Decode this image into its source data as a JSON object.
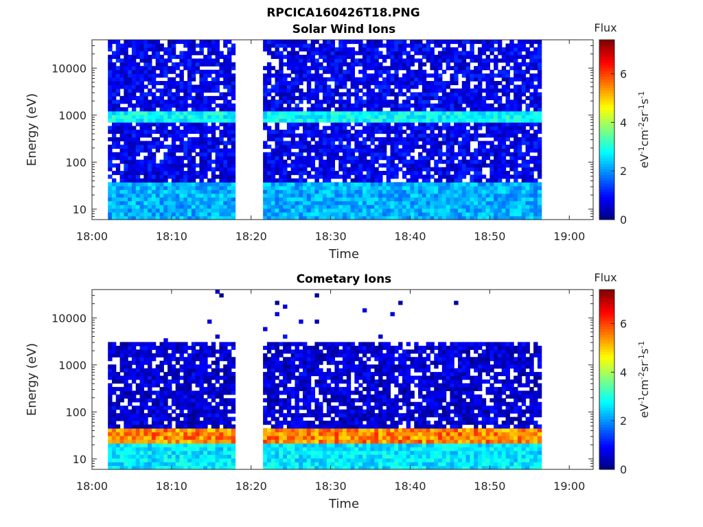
{
  "figure_title": "RPCICA160426T18.PNG",
  "colors": {
    "background": "#ffffff",
    "axes": "#262626",
    "colormap": [
      "#00007f",
      "#0000ff",
      "#007fff",
      "#00ffff",
      "#7fff7f",
      "#ffff00",
      "#ff7f00",
      "#ff0000",
      "#7f0000"
    ]
  },
  "chart_data": [
    {
      "type": "heatmap",
      "title": "Solar Wind Ions",
      "xlabel": "Time",
      "ylabel": "Energy (eV)",
      "x_ticks": [
        "18:00",
        "18:10",
        "18:20",
        "18:30",
        "18:40",
        "18:50",
        "19:00"
      ],
      "x_range_minutes": [
        0,
        63
      ],
      "y_scale": "log",
      "y_ticks": [
        "10",
        "100",
        "1000",
        "10000"
      ],
      "y_range": [
        6,
        40000
      ],
      "colorbar": {
        "title": "Flux",
        "label": "eV-1cm-2sr-1s-1",
        "range": [
          0,
          7.4
        ],
        "ticks": [
          "0",
          "2",
          "4",
          "6"
        ]
      },
      "data_gaps_minutes": [
        [
          0,
          2.1
        ],
        [
          18.2,
          21.3
        ],
        [
          56.5,
          63
        ]
      ],
      "bands": [
        {
          "description": "background",
          "energy_range": [
            6,
            40000
          ],
          "flux": 0.8
        },
        {
          "description": "low-energy band",
          "energy_range": [
            6,
            40
          ],
          "flux": 2.2
        },
        {
          "description": "solar wind proton peak",
          "energy_range": [
            700,
            1300
          ],
          "flux": 2.8
        }
      ]
    },
    {
      "type": "heatmap",
      "title": "Cometary Ions",
      "xlabel": "Time",
      "ylabel": "Energy (eV)",
      "x_ticks": [
        "18:00",
        "18:10",
        "18:20",
        "18:30",
        "18:40",
        "18:50",
        "19:00"
      ],
      "x_range_minutes": [
        0,
        63
      ],
      "y_scale": "log",
      "y_ticks": [
        "10",
        "100",
        "1000",
        "10000"
      ],
      "y_range": [
        6,
        40000
      ],
      "colorbar": {
        "title": "Flux",
        "label": "eV-1cm-2sr-1s-1",
        "range": [
          0,
          7.4
        ],
        "ticks": [
          "0",
          "2",
          "4",
          "6"
        ]
      },
      "data_gaps_minutes": [
        [
          0,
          2.1
        ],
        [
          18.2,
          21.3
        ],
        [
          56.5,
          63
        ]
      ],
      "bands": [
        {
          "description": "background",
          "energy_range": [
            6,
            3200
          ],
          "flux": 0.6
        },
        {
          "description": "low-energy band",
          "energy_range": [
            6,
            20
          ],
          "flux": 2.6
        },
        {
          "description": "cometary ion peak",
          "energy_range": [
            20,
            45
          ],
          "flux": 5.5
        }
      ]
    }
  ]
}
